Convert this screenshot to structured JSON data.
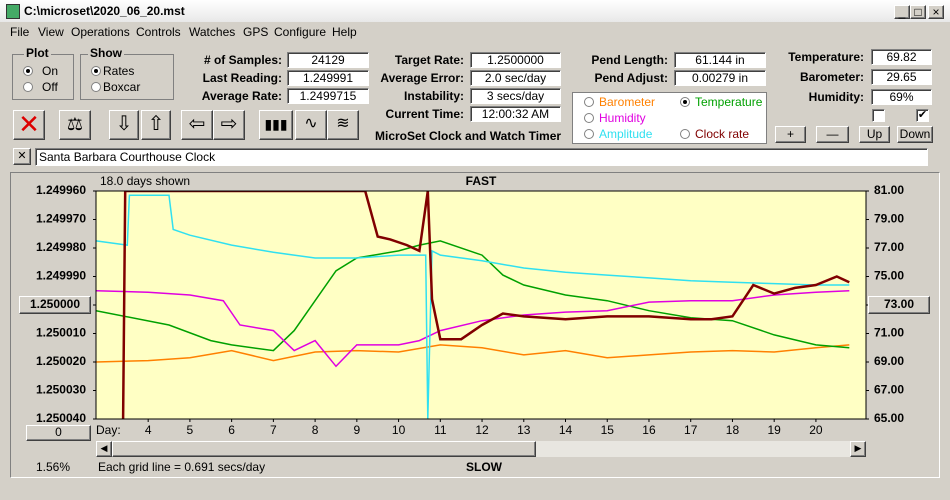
{
  "window": {
    "title": "C:\\microset\\2020_06_20.mst",
    "menu": [
      "File",
      "View",
      "Operations",
      "Controls",
      "Watches",
      "GPS",
      "Configure",
      "Help"
    ]
  },
  "controls": {
    "plot": {
      "title": "Plot",
      "options": [
        "On",
        "Off"
      ],
      "selected": 0
    },
    "show": {
      "title": "Show",
      "options": [
        "Rates",
        "Boxcar"
      ],
      "selected": 0
    },
    "stats": [
      {
        "label": "# of Samples:",
        "value": "24129"
      },
      {
        "label": "Last Reading:",
        "value": "1.249991"
      },
      {
        "label": "Average Rate:",
        "value": "1.2499715"
      }
    ],
    "rates": [
      {
        "label": "Target Rate:",
        "value": "1.2500000"
      },
      {
        "label": "Average Error:",
        "value": "2.0 sec/day"
      },
      {
        "label": "Instability:",
        "value": "3 secs/day"
      },
      {
        "label": "Current Time:",
        "value": "12:00:32 AM"
      }
    ],
    "pendulum": [
      {
        "label": "Pend Length:",
        "value": "61.144 in"
      },
      {
        "label": "Pend Adjust:",
        "value": "0.00279 in"
      }
    ],
    "environment": [
      {
        "label": "Temperature:",
        "value": "69.82"
      },
      {
        "label": "Barometer:",
        "value": "29.65"
      },
      {
        "label": "Humidity:",
        "value": "69%"
      }
    ],
    "app_name": "MicroSet Clock and Watch Timer",
    "adjust_buttons": [
      "+",
      "—",
      "Up",
      "Down"
    ],
    "clock_name": "Santa Barbara Courthouse Clock"
  },
  "chart_data": {
    "type": "line",
    "days_shown": "18.0 days shown",
    "top_label": "FAST",
    "bottom_label": "SLOW",
    "x_label": "Day:",
    "footer": "Each grid line = 0.691 secs/day",
    "zoom": "1.56%",
    "offset_button": "0",
    "xlim": [
      2.75,
      21.2
    ],
    "xticks": [
      4,
      5,
      6,
      7,
      8,
      9,
      10,
      11,
      12,
      13,
      14,
      15,
      16,
      17,
      18,
      19,
      20
    ],
    "ylim": [
      1.25004,
      1.24996
    ],
    "yticks": [
      {
        "value": 1.24996,
        "label": "1.249960"
      },
      {
        "value": 1.24997,
        "label": "1.249970"
      },
      {
        "value": 1.24998,
        "label": "1.249980"
      },
      {
        "value": 1.24999,
        "label": "1.249990"
      },
      {
        "value": 1.25,
        "label": "1.250000"
      },
      {
        "value": 1.25001,
        "label": "1.250010"
      },
      {
        "value": 1.25002,
        "label": "1.250020"
      },
      {
        "value": 1.25003,
        "label": "1.250030"
      },
      {
        "value": 1.25004,
        "label": "1.250040"
      }
    ],
    "y2lim": [
      65,
      81
    ],
    "y2ticks": [
      {
        "value": 81,
        "label": "81.00"
      },
      {
        "value": 79,
        "label": "79.00"
      },
      {
        "value": 77,
        "label": "77.00"
      },
      {
        "value": 75,
        "label": "75.00"
      },
      {
        "value": 73,
        "label": "73.00"
      },
      {
        "value": 71,
        "label": "71.00"
      },
      {
        "value": 69,
        "label": "69.00"
      },
      {
        "value": 67,
        "label": "67.00"
      },
      {
        "value": 65,
        "label": "65.00"
      }
    ],
    "selected_series": 1,
    "series": [
      {
        "name": "Barometer",
        "color": "#ff8000",
        "axis": "y2",
        "x": [
          2.75,
          4,
          5,
          6,
          7,
          8,
          9,
          10,
          11,
          12,
          13,
          14,
          15,
          16,
          17,
          18,
          19,
          20,
          20.8
        ],
        "values": [
          69,
          69.1,
          69.3,
          69.8,
          69.1,
          69.7,
          69.8,
          69.7,
          70.2,
          70,
          69.5,
          69.8,
          69.3,
          69.5,
          69.7,
          69.8,
          69.7,
          70,
          70.2
        ]
      },
      {
        "name": "Temperature",
        "color": "#00a000",
        "axis": "y2",
        "x": [
          2.75,
          4.5,
          5.5,
          6,
          7,
          7.5,
          8,
          8.5,
          9,
          10,
          10.5,
          11,
          12,
          12.5,
          13,
          14,
          15,
          16,
          17,
          18,
          19,
          20,
          20.8
        ],
        "values": [
          72.6,
          71.6,
          70.5,
          70.2,
          69.8,
          71.2,
          73.3,
          75.4,
          76.3,
          76.8,
          77.2,
          77.5,
          76.5,
          75.1,
          74.4,
          73.7,
          73.3,
          72.6,
          72.1,
          71.9,
          70.9,
          70.2,
          70
        ]
      },
      {
        "name": "Humidity",
        "color": "#e000e0",
        "axis": "y2",
        "x": [
          2.75,
          4,
          5,
          5.8,
          6.2,
          7,
          7.5,
          8,
          8.5,
          9,
          10,
          10.5,
          11,
          12,
          13,
          14,
          15,
          16,
          17,
          18,
          19,
          20,
          20.8
        ],
        "values": [
          74,
          73.9,
          73.7,
          73.3,
          71.6,
          71.2,
          69.8,
          70.5,
          68.7,
          70.2,
          70.2,
          70.5,
          71.2,
          71.9,
          72.3,
          72.5,
          72.6,
          73.2,
          73.3,
          73.3,
          73.7,
          73.9,
          74
        ]
      },
      {
        "name": "Amplitude",
        "color": "#30e0f0",
        "axis": "y2",
        "x": [
          2.75,
          3.5,
          3.55,
          4.5,
          4.6,
          5,
          6,
          7,
          8,
          9,
          10,
          10.65,
          10.7,
          10.8,
          11,
          12,
          13,
          14,
          15,
          16,
          17,
          18,
          19,
          20,
          20.8
        ],
        "values": [
          77.5,
          77.2,
          80.7,
          80.7,
          78.3,
          77.9,
          77.2,
          76.7,
          76.3,
          76.3,
          76.5,
          76.5,
          65,
          76.8,
          76.5,
          76.1,
          75.6,
          75.3,
          75.1,
          74.9,
          74.7,
          74.6,
          74.5,
          74.4,
          74.4
        ]
      },
      {
        "name": "Clock rate",
        "color": "#800000",
        "x": [
          3.4,
          3.45,
          9.2,
          9.5,
          9.8,
          10.2,
          10.5,
          10.7,
          10.8,
          11,
          11.5,
          12,
          12.5,
          13,
          14,
          15,
          16,
          17,
          17.5,
          18,
          18.5,
          19,
          19.5,
          20,
          20.5,
          20.8
        ],
        "values": [
          1.25004,
          1.24996,
          1.24996,
          1.249976,
          1.249977,
          1.249979,
          1.249981,
          1.24996,
          1.249998,
          1.250012,
          1.250012,
          1.250007,
          1.250003,
          1.250004,
          1.250005,
          1.250004,
          1.250004,
          1.250005,
          1.250005,
          1.250004,
          1.249993,
          1.249996,
          1.249994,
          1.249993,
          1.24999,
          1.249992
        ]
      }
    ]
  }
}
